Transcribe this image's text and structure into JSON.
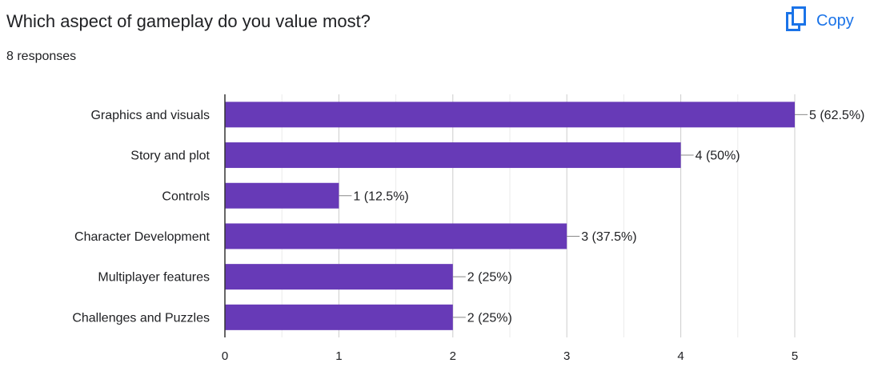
{
  "question": {
    "title": "Which aspect of gameplay do you value most?",
    "responses": "8 responses"
  },
  "copy_button": {
    "label": "Copy",
    "icon": "copy-icon",
    "color": "#1a73e8"
  },
  "chart_data": {
    "type": "bar",
    "orientation": "horizontal",
    "categories": [
      "Graphics and visuals",
      "Story and plot",
      "Controls",
      "Character Development",
      "Multiplayer features",
      "Challenges and Puzzles"
    ],
    "values": [
      5,
      4,
      1,
      3,
      2,
      2
    ],
    "value_labels": [
      "5 (62.5%)",
      "4 (50%)",
      "1 (12.5%)",
      "3 (37.5%)",
      "2 (25%)",
      "2 (25%)"
    ],
    "xlim": [
      0,
      5
    ],
    "xticks": [
      "0",
      "1",
      "2",
      "3",
      "4",
      "5"
    ],
    "grid": true,
    "bar_color": "#673ab7"
  }
}
